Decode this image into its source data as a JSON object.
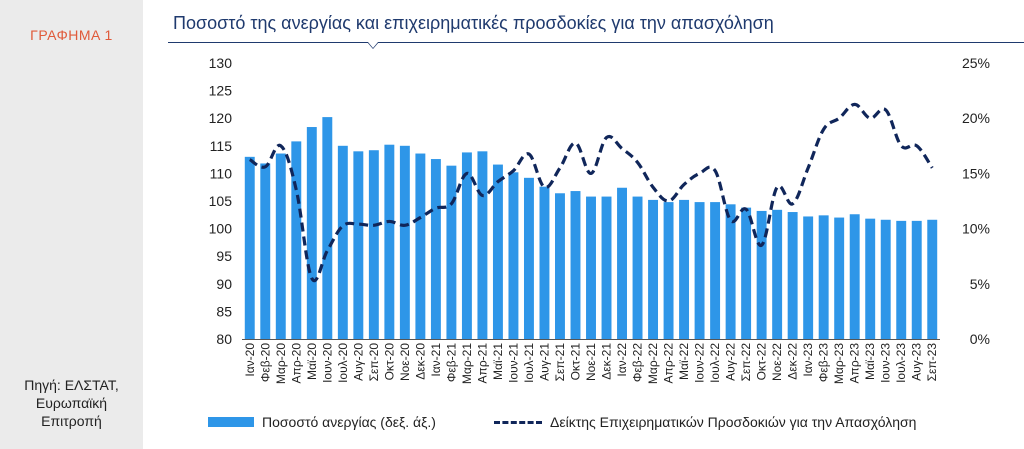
{
  "sidebar": {
    "figure_label": "ΓΡΑΦΗΜΑ 1",
    "source": "Πηγή: ΕΛΣΤΑΤ,\nΕυρωπαϊκή\nΕπιτροπή"
  },
  "colors": {
    "bar": "#2e96e8",
    "line": "#10265a",
    "title": "#1f3a6e",
    "figure_label": "#e05a3a"
  },
  "chart_data": {
    "type": "bar",
    "title": "Ποσοστό της ανεργίας και επιχειρηματικές προσδοκίες για την απασχόληση",
    "categories": [
      "Ιαν-20",
      "Φεβ-20",
      "Μαρ-20",
      "Απρ-20",
      "Μαϊ-20",
      "Ιουν-20",
      "Ιουλ-20",
      "Αυγ-20",
      "Σεπ-20",
      "Οκτ-20",
      "Νοε-20",
      "Δεκ-20",
      "Ιαν-21",
      "Φεβ-21",
      "Μαρ-21",
      "Απρ-21",
      "Μαϊ-21",
      "Ιουν-21",
      "Ιουλ-21",
      "Αυγ-21",
      "Σεπ-21",
      "Οκτ-21",
      "Νοε-21",
      "Δεκ-21",
      "Ιαν-22",
      "Φεβ-22",
      "Μαρ-22",
      "Απρ-22",
      "Μαϊ-22",
      "Ιουν-22",
      "Ιουλ-22",
      "Αυγ-22",
      "Σεπ-22",
      "Οκτ-22",
      "Νοε-22",
      "Δεκ-22",
      "Ιαν-23",
      "Φεβ-23",
      "Μαρ-23",
      "Απρ-23",
      "Μαϊ-23",
      "Ιουν-23",
      "Ιουλ-23",
      "Αυγ-23",
      "Σεπ-23"
    ],
    "series": [
      {
        "name": "Ποσοστό ανεργίας (δεξ. άξ.)",
        "type": "bar",
        "axis": "right",
        "values": [
          16.5,
          15.9,
          16.8,
          17.9,
          19.2,
          20.1,
          17.5,
          17.0,
          17.1,
          17.6,
          17.5,
          16.8,
          16.3,
          15.7,
          16.9,
          17.0,
          15.8,
          15.1,
          14.6,
          13.8,
          13.2,
          13.4,
          12.9,
          12.9,
          13.7,
          12.9,
          12.6,
          12.4,
          12.6,
          12.4,
          12.4,
          12.2,
          11.9,
          11.6,
          11.7,
          11.5,
          11.1,
          11.2,
          11.0,
          11.3,
          10.9,
          10.8,
          10.7,
          10.7,
          10.8
        ]
      },
      {
        "name": "Δείκτης Επιχειρηματικών Προσδοκιών για την Απασχόληση",
        "type": "line",
        "axis": "left",
        "values": [
          112.5,
          111.2,
          115.0,
          107.0,
          91.0,
          96.0,
          100.5,
          100.8,
          100.6,
          101.3,
          100.6,
          102.0,
          103.7,
          104.5,
          110.0,
          106.0,
          108.5,
          110.5,
          113.5,
          107.5,
          111.0,
          115.5,
          110.0,
          116.5,
          114.5,
          112.0,
          107.5,
          105.0,
          108.0,
          110.0,
          110.5,
          101.5,
          103.5,
          97.0,
          107.5,
          104.5,
          111.0,
          118.0,
          120.0,
          122.5,
          120.0,
          121.5,
          115.0,
          115.0,
          111.0
        ]
      }
    ],
    "y_left": {
      "min": 80,
      "max": 130,
      "step": 5,
      "ticks": [
        "80",
        "85",
        "90",
        "95",
        "100",
        "105",
        "110",
        "115",
        "120",
        "125",
        "130"
      ]
    },
    "y_right": {
      "min": 0,
      "max": 25,
      "step": 5,
      "ticks": [
        "0%",
        "5%",
        "10%",
        "15%",
        "20%",
        "25%"
      ]
    },
    "grid": false,
    "legend_position": "bottom"
  }
}
